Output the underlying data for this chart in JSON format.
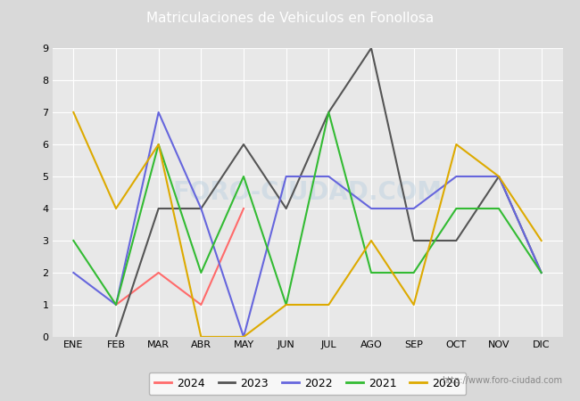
{
  "title": "Matriculaciones de Vehiculos en Fonollosa",
  "months": [
    "ENE",
    "FEB",
    "MAR",
    "ABR",
    "MAY",
    "JUN",
    "JUL",
    "AGO",
    "SEP",
    "OCT",
    "NOV",
    "DIC"
  ],
  "series": {
    "2024": {
      "values": [
        null,
        1.0,
        2.0,
        1.0,
        4.0,
        null,
        null,
        null,
        null,
        null,
        null,
        null
      ],
      "color": "#ff6b6b",
      "label": "2024"
    },
    "2023": {
      "values": [
        null,
        0.0,
        4.0,
        4.0,
        6.0,
        4.0,
        7.0,
        9.0,
        3.0,
        3.0,
        5.0,
        2.0
      ],
      "color": "#555555",
      "label": "2023"
    },
    "2022": {
      "values": [
        2.0,
        1.0,
        7.0,
        4.0,
        0.0,
        5.0,
        5.0,
        4.0,
        4.0,
        5.0,
        5.0,
        2.0
      ],
      "color": "#6666dd",
      "label": "2022"
    },
    "2021": {
      "values": [
        3.0,
        1.0,
        6.0,
        2.0,
        5.0,
        1.0,
        7.0,
        2.0,
        2.0,
        4.0,
        4.0,
        2.0
      ],
      "color": "#33bb33",
      "label": "2021"
    },
    "2020": {
      "values": [
        7.0,
        4.0,
        6.0,
        0.0,
        0.0,
        1.0,
        1.0,
        3.0,
        1.0,
        6.0,
        5.0,
        3.0
      ],
      "color": "#ddaa00",
      "label": "2020"
    }
  },
  "ylim": [
    0.0,
    9.0
  ],
  "yticks": [
    0.0,
    1.0,
    2.0,
    3.0,
    4.0,
    5.0,
    6.0,
    7.0,
    8.0,
    9.0
  ],
  "title_color": "#ffffff",
  "title_bg_color": "#5b9bd5",
  "outer_bg_color": "#d9d9d9",
  "plot_bg_color": "#e8e8e8",
  "grid_color": "#ffffff",
  "watermark_text": "http://www.foro-ciudad.com",
  "watermark_color": "#b8cfe0",
  "big_watermark": "FORO-CIUDAD.COM",
  "legend_order": [
    "2024",
    "2023",
    "2022",
    "2021",
    "2020"
  ],
  "linewidth": 1.5
}
